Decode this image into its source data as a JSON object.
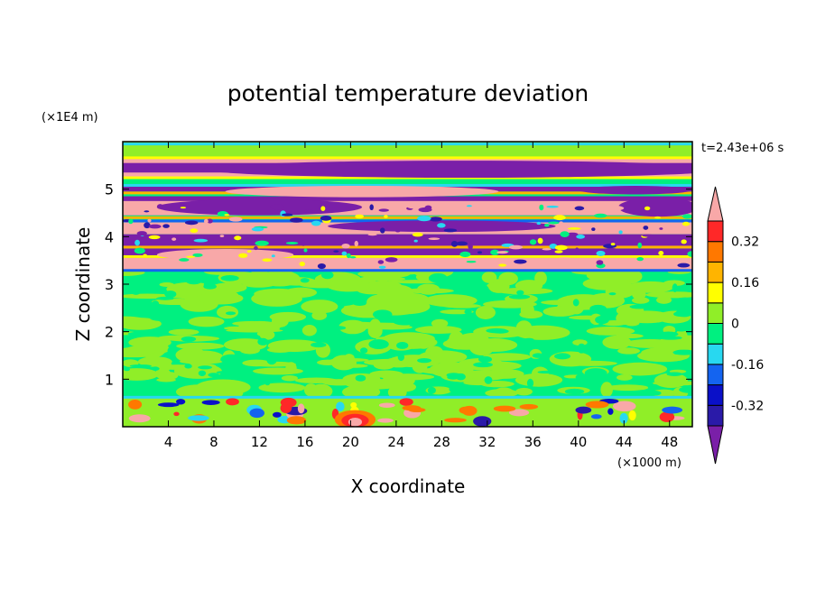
{
  "chart_data": {
    "type": "heatmap",
    "title": "potential temperature deviation",
    "xlabel": "X coordinate",
    "ylabel": "Z coordinate",
    "x_unit": "(×1000 m)",
    "y_unit": "(×1E4 m)",
    "time_label": "t=2.43e+06 s",
    "xlim": [
      0,
      50
    ],
    "ylim": [
      0,
      6
    ],
    "x_ticks": [
      4,
      8,
      12,
      16,
      20,
      24,
      28,
      32,
      36,
      40,
      44,
      48
    ],
    "y_ticks": [
      1,
      2,
      3,
      4,
      5
    ],
    "colorbar": {
      "levels": [
        -0.4,
        -0.32,
        -0.24,
        -0.16,
        -0.08,
        0,
        0.08,
        0.16,
        0.24,
        0.32,
        0.4
      ],
      "tick_labels": [
        "0.32",
        "0.16",
        "0",
        "-0.16",
        "-0.32"
      ],
      "tick_values": [
        0.32,
        0.16,
        0,
        -0.16,
        -0.32
      ],
      "colors_low_to_high": [
        "#7a1fa8",
        "#2a1aa8",
        "#0a10c8",
        "#1464f0",
        "#28d8f0",
        "#00f080",
        "#90ee28",
        "#ffff00",
        "#ffb400",
        "#ff7800",
        "#ff2828",
        "#f8a8a8"
      ],
      "extend": "both"
    },
    "bands": [
      {
        "z_top": 6.0,
        "z_bottom": 5.65,
        "color": "#90ee28"
      },
      {
        "z_top": 5.65,
        "z_bottom": 5.25,
        "color": "#f8a8a8"
      },
      {
        "z_top": 5.55,
        "z_bottom": 5.35,
        "color": "#7a1fa8"
      },
      {
        "z_top": 5.05,
        "z_bottom": 4.95,
        "color": "#7a1fa8"
      },
      {
        "z_top": 4.85,
        "z_bottom": 4.45,
        "color": "#7a1fa8"
      },
      {
        "z_top": 4.75,
        "z_bottom": 4.45,
        "color": "#f8a8a8"
      },
      {
        "z_top": 4.3,
        "z_bottom": 4.05,
        "color": "#f8a8a8"
      },
      {
        "z_top": 4.05,
        "z_bottom": 3.8,
        "color": "#7a1fa8"
      },
      {
        "z_top": 3.75,
        "z_bottom": 3.55,
        "color": "#7a1fa8"
      },
      {
        "z_top": 3.55,
        "z_bottom": 3.3,
        "color": "#f8a8a8"
      },
      {
        "z_top": 0.6,
        "z_bottom": 0.0,
        "color": "#90ee28"
      }
    ]
  }
}
